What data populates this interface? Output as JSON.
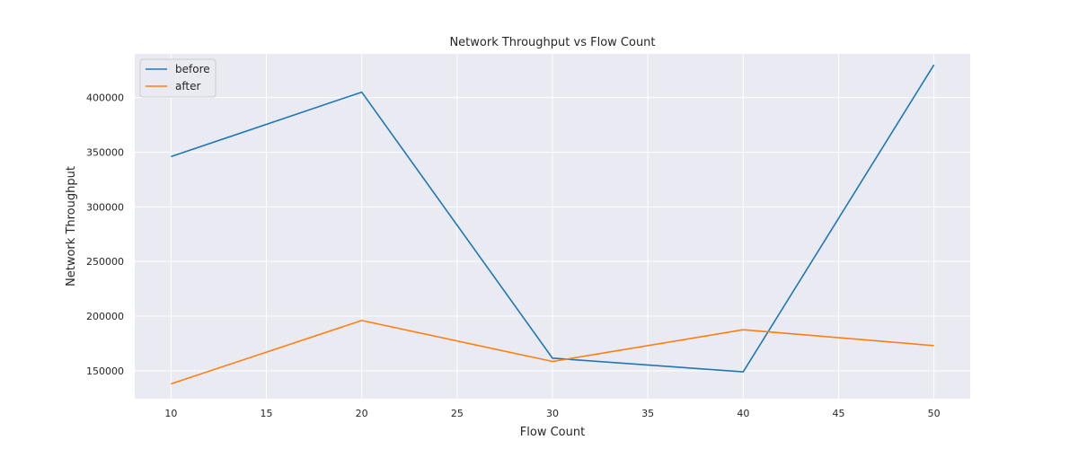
{
  "chart_data": {
    "type": "line",
    "title": "Network Throughput vs Flow Count",
    "xlabel": "Flow Count",
    "ylabel": "Network Throughput",
    "x": [
      10,
      20,
      30,
      40,
      50
    ],
    "xlim": [
      8.1,
      51.9
    ],
    "ylim": [
      124400,
      440000
    ],
    "xticks": [
      10,
      15,
      20,
      25,
      30,
      35,
      40,
      45,
      50
    ],
    "yticks": [
      150000,
      200000,
      250000,
      300000,
      350000,
      400000
    ],
    "xtick_labels": [
      "10",
      "15",
      "20",
      "25",
      "30",
      "35",
      "40",
      "45",
      "50"
    ],
    "ytick_labels": [
      "150000",
      "200000",
      "250000",
      "300000",
      "350000",
      "400000"
    ],
    "grid": true,
    "legend_position": "top-left",
    "series": [
      {
        "name": "before",
        "color": "#1f77b4",
        "values": [
          346000,
          405000,
          161500,
          149000,
          430000
        ]
      },
      {
        "name": "after",
        "color": "#ff7f0e",
        "values": [
          138000,
          196000,
          158500,
          187500,
          173000
        ]
      }
    ]
  }
}
